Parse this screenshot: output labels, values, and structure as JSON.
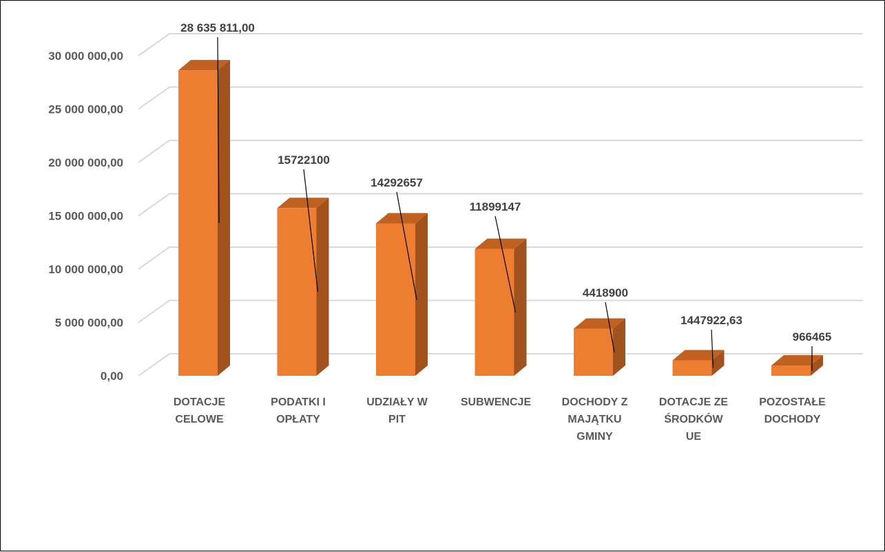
{
  "chart_data": {
    "type": "bar",
    "style": "3d-column",
    "categories": [
      [
        "DOTACJE",
        "CELOWE"
      ],
      [
        "PODATKI I",
        "OPŁATY"
      ],
      [
        "UDZIAŁY W",
        "PIT"
      ],
      [
        "SUBWENCJE"
      ],
      [
        "DOCHODY Z",
        "MAJĄTKU",
        "GMINY"
      ],
      [
        "DOTACJE ZE",
        "ŚRODKÓW",
        "UE"
      ],
      [
        "POZOSTAŁE",
        "DOCHODY"
      ]
    ],
    "values": [
      28635811.0,
      15722100,
      14292657,
      11899147,
      4418900,
      1447922.63,
      966465
    ],
    "data_labels": [
      "28 635 811,00",
      "15722100",
      "14292657",
      "11899147",
      "4418900",
      "1447922,63",
      "966465"
    ],
    "y_ticks": [
      "0,00",
      "5 000 000,00",
      "10 000 000,00",
      "15 000 000,00",
      "20 000 000,00",
      "25 000 000,00",
      "30 000 000,00"
    ],
    "ylim": [
      0,
      30000000
    ],
    "grid": true,
    "legend": "none",
    "colors": {
      "bar_front": "#ED7D31",
      "bar_side": "#A0531F",
      "bar_top": "#C1611F",
      "grid": "#D9D9D9",
      "text": "#595959",
      "label": "#404040"
    }
  }
}
